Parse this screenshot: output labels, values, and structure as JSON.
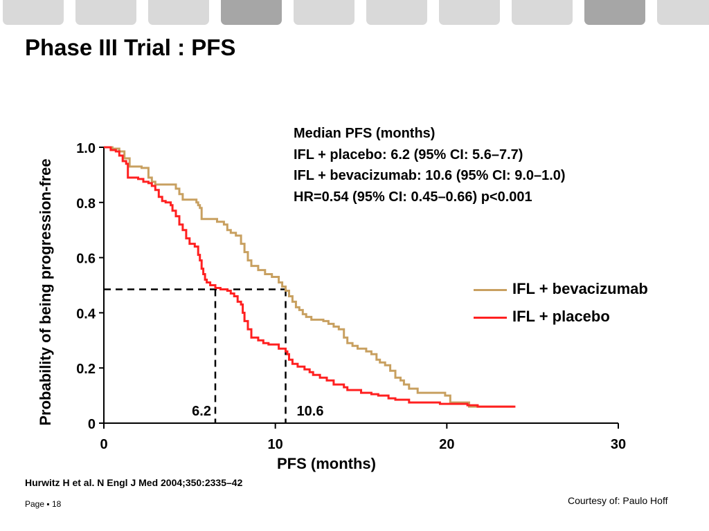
{
  "slide": {
    "title": "Phase III Trial : PFS",
    "citation": "Hurwitz H et al. N Engl J Med 2004;350:2335–42",
    "page_label": "Page ▪ 18",
    "courtesy": "Courtesy of: Paulo Hoff",
    "header_tabs": 10
  },
  "info": {
    "heading": "Median PFS (months)",
    "line1": "IFL + placebo: 6.2 (95% CI: 5.6–7.7)",
    "line2": "IFL + bevacizumab: 10.6 (95% CI: 9.0–1.0)",
    "line3": "HR=0.54 (95% CI: 0.45–0.66) p<0.001"
  },
  "chart_data": {
    "type": "line",
    "step": true,
    "xlabel": "PFS (months)",
    "ylabel": "Probability of being progression-free",
    "xlim": [
      0,
      30
    ],
    "ylim": [
      0,
      1.0
    ],
    "x_ticks": [
      0,
      10,
      20,
      30
    ],
    "x_tick_labels": [
      "0",
      "10",
      "20",
      "30"
    ],
    "y_ticks": [
      0,
      0.2,
      0.4,
      0.6,
      0.8,
      1.0
    ],
    "y_tick_labels": [
      "0",
      "0.2",
      "0.4",
      "0.6",
      "0.8",
      "1.0"
    ],
    "grid": false,
    "legend_position": "right",
    "series": [
      {
        "name": "IFL + bevacizumab",
        "color": "#c8a060",
        "points": [
          [
            0,
            1.0
          ],
          [
            0.5,
            0.995
          ],
          [
            0.9,
            0.985
          ],
          [
            1.2,
            0.96
          ],
          [
            1.5,
            0.93
          ],
          [
            2.2,
            0.925
          ],
          [
            2.6,
            0.89
          ],
          [
            2.8,
            0.875
          ],
          [
            3.0,
            0.865
          ],
          [
            4.2,
            0.85
          ],
          [
            4.4,
            0.83
          ],
          [
            4.6,
            0.81
          ],
          [
            5.4,
            0.8
          ],
          [
            5.5,
            0.79
          ],
          [
            5.6,
            0.78
          ],
          [
            5.7,
            0.74
          ],
          [
            6.5,
            0.74
          ],
          [
            6.6,
            0.73
          ],
          [
            7.0,
            0.72
          ],
          [
            7.2,
            0.7
          ],
          [
            7.4,
            0.69
          ],
          [
            7.7,
            0.68
          ],
          [
            8.0,
            0.65
          ],
          [
            8.2,
            0.62
          ],
          [
            8.4,
            0.59
          ],
          [
            8.6,
            0.57
          ],
          [
            9.0,
            0.555
          ],
          [
            9.4,
            0.54
          ],
          [
            9.8,
            0.53
          ],
          [
            10.2,
            0.51
          ],
          [
            10.4,
            0.495
          ],
          [
            10.6,
            0.48
          ],
          [
            10.8,
            0.46
          ],
          [
            11.0,
            0.44
          ],
          [
            11.2,
            0.42
          ],
          [
            11.4,
            0.41
          ],
          [
            11.6,
            0.395
          ],
          [
            11.8,
            0.385
          ],
          [
            12.1,
            0.375
          ],
          [
            12.8,
            0.37
          ],
          [
            13.1,
            0.36
          ],
          [
            13.4,
            0.35
          ],
          [
            13.7,
            0.34
          ],
          [
            14.0,
            0.31
          ],
          [
            14.2,
            0.29
          ],
          [
            14.5,
            0.28
          ],
          [
            14.8,
            0.27
          ],
          [
            15.3,
            0.26
          ],
          [
            15.6,
            0.25
          ],
          [
            15.9,
            0.23
          ],
          [
            16.1,
            0.22
          ],
          [
            16.4,
            0.21
          ],
          [
            16.7,
            0.19
          ],
          [
            17.0,
            0.165
          ],
          [
            17.3,
            0.155
          ],
          [
            17.5,
            0.14
          ],
          [
            17.8,
            0.125
          ],
          [
            18.3,
            0.11
          ],
          [
            19.9,
            0.1
          ],
          [
            20.2,
            0.075
          ],
          [
            21.3,
            0.06
          ],
          [
            23.9,
            0.06
          ]
        ]
      },
      {
        "name": "IFL + placebo",
        "color": "#ff2020",
        "points": [
          [
            0,
            1.0
          ],
          [
            0.4,
            0.99
          ],
          [
            0.7,
            0.985
          ],
          [
            0.9,
            0.97
          ],
          [
            1.1,
            0.95
          ],
          [
            1.3,
            0.94
          ],
          [
            1.4,
            0.89
          ],
          [
            2.0,
            0.885
          ],
          [
            2.3,
            0.875
          ],
          [
            2.6,
            0.87
          ],
          [
            2.8,
            0.86
          ],
          [
            3.0,
            0.845
          ],
          [
            3.2,
            0.82
          ],
          [
            3.4,
            0.805
          ],
          [
            3.6,
            0.8
          ],
          [
            3.9,
            0.79
          ],
          [
            4.0,
            0.77
          ],
          [
            4.2,
            0.75
          ],
          [
            4.4,
            0.72
          ],
          [
            4.6,
            0.7
          ],
          [
            4.8,
            0.67
          ],
          [
            5.0,
            0.65
          ],
          [
            5.3,
            0.64
          ],
          [
            5.5,
            0.61
          ],
          [
            5.6,
            0.59
          ],
          [
            5.7,
            0.56
          ],
          [
            5.8,
            0.54
          ],
          [
            5.9,
            0.52
          ],
          [
            6.0,
            0.51
          ],
          [
            6.2,
            0.5
          ],
          [
            6.5,
            0.49
          ],
          [
            6.8,
            0.485
          ],
          [
            7.2,
            0.48
          ],
          [
            7.4,
            0.47
          ],
          [
            7.6,
            0.46
          ],
          [
            7.8,
            0.44
          ],
          [
            8.0,
            0.43
          ],
          [
            8.1,
            0.4
          ],
          [
            8.2,
            0.37
          ],
          [
            8.4,
            0.34
          ],
          [
            8.6,
            0.31
          ],
          [
            9.0,
            0.3
          ],
          [
            9.3,
            0.29
          ],
          [
            9.6,
            0.285
          ],
          [
            10.0,
            0.285
          ],
          [
            10.2,
            0.27
          ],
          [
            10.6,
            0.26
          ],
          [
            10.7,
            0.25
          ],
          [
            10.8,
            0.23
          ],
          [
            11.0,
            0.215
          ],
          [
            11.3,
            0.205
          ],
          [
            11.7,
            0.195
          ],
          [
            12.0,
            0.185
          ],
          [
            12.2,
            0.175
          ],
          [
            12.6,
            0.165
          ],
          [
            13.0,
            0.155
          ],
          [
            13.4,
            0.14
          ],
          [
            14.0,
            0.13
          ],
          [
            14.2,
            0.12
          ],
          [
            15.0,
            0.11
          ],
          [
            15.6,
            0.105
          ],
          [
            16.0,
            0.1
          ],
          [
            16.6,
            0.09
          ],
          [
            17.0,
            0.085
          ],
          [
            17.8,
            0.075
          ],
          [
            19.6,
            0.07
          ],
          [
            21.2,
            0.065
          ],
          [
            21.8,
            0.06
          ],
          [
            24.0,
            0.06
          ]
        ]
      }
    ],
    "annotations": [
      {
        "text": "6.2",
        "x": 6.5,
        "y": 0.5
      },
      {
        "text": "10.6",
        "x": 10.6,
        "y": 0.5
      }
    ]
  }
}
